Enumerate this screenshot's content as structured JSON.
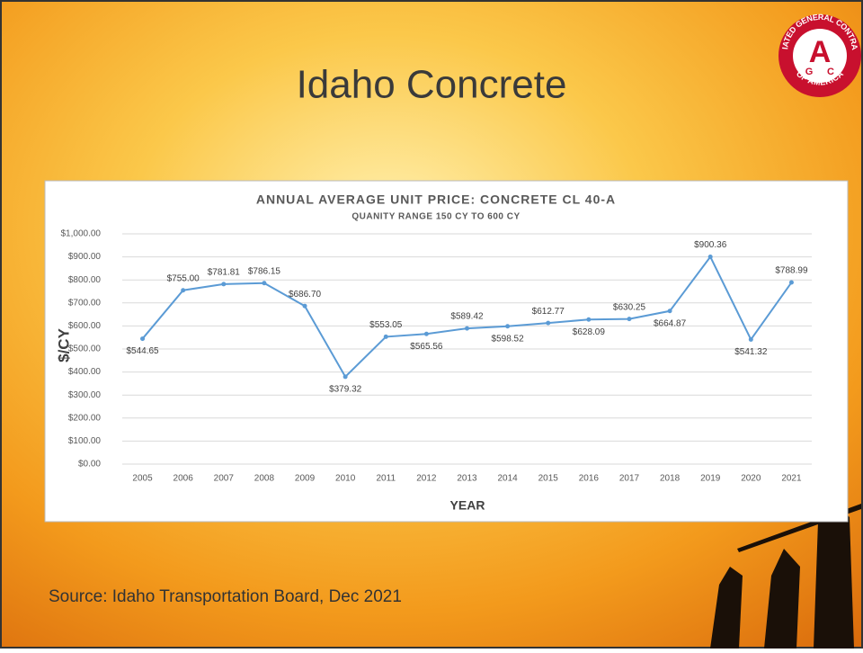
{
  "slide_title": "Idaho Concrete",
  "source": "Source: Idaho Transportation Board, Dec 2021",
  "logo": {
    "ring_top": "ASSOCIATED GENERAL CONTRACTORS",
    "ring_bottom": "OF AMERICA",
    "letters": [
      "A",
      "G",
      "C"
    ]
  },
  "chart_data": {
    "type": "line",
    "title": "ANNUAL AVERAGE UNIT PRICE: CONCRETE CL 40-A",
    "subtitle": "QUANITY RANGE 150 CY TO 600 CY",
    "y_label": "$/CY",
    "x_label": "YEAR",
    "categories": [
      "2005",
      "2006",
      "2007",
      "2008",
      "2009",
      "2010",
      "2011",
      "2012",
      "2013",
      "2014",
      "2015",
      "2016",
      "2017",
      "2018",
      "2019",
      "2020",
      "2021"
    ],
    "values": [
      544.65,
      755.0,
      781.81,
      786.15,
      686.7,
      379.32,
      553.05,
      565.56,
      589.42,
      598.52,
      612.77,
      628.09,
      630.25,
      664.87,
      900.36,
      541.32,
      788.99
    ],
    "value_labels": [
      "$544.65",
      "$755.00",
      "$781.81",
      "$786.15",
      "$686.70",
      "$379.32",
      "$553.05",
      "$565.56",
      "$589.42",
      "$598.52",
      "$612.77",
      "$628.09",
      "$630.25",
      "$664.87",
      "$900.36",
      "$541.32",
      "$788.99"
    ],
    "color": "#5b9bd5",
    "ylim": [
      0,
      1000
    ],
    "yticks": [
      {
        "value": 0,
        "label": "$0.00"
      },
      {
        "value": 100,
        "label": "$100.00"
      },
      {
        "value": 200,
        "label": "$200.00"
      },
      {
        "value": 300,
        "label": "$300.00"
      },
      {
        "value": 400,
        "label": "$400.00"
      },
      {
        "value": 500,
        "label": "$500.00"
      },
      {
        "value": 600,
        "label": "$600.00"
      },
      {
        "value": 700,
        "label": "$700.00"
      },
      {
        "value": 800,
        "label": "$800.00"
      },
      {
        "value": 900,
        "label": "$900.00"
      },
      {
        "value": 1000,
        "label": "$1,000.00"
      }
    ],
    "grid": true
  }
}
